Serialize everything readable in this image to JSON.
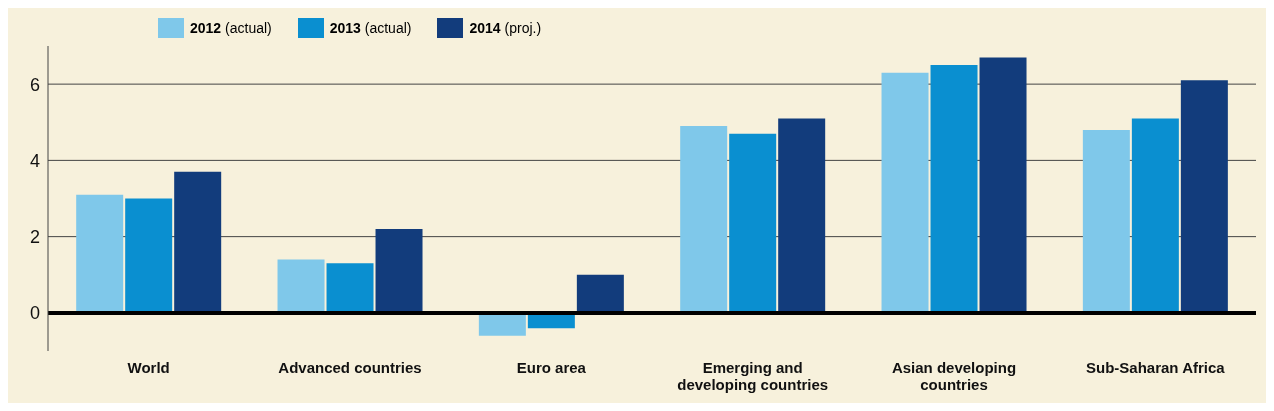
{
  "chart_data": {
    "type": "bar",
    "categories": [
      "World",
      "Advanced countries",
      "Euro area",
      "Emerging and developing countries",
      "Asian developing countries",
      "Sub-Saharan Africa"
    ],
    "series": [
      {
        "name": "2012 (actual)",
        "color": "#7fc8ea",
        "values": [
          3.1,
          1.4,
          -0.6,
          4.9,
          6.3,
          4.8
        ]
      },
      {
        "name": "2013 (actual)",
        "color": "#0a8fd0",
        "values": [
          3.0,
          1.3,
          -0.4,
          4.7,
          6.5,
          5.1
        ]
      },
      {
        "name": "2014 (proj.)",
        "color": "#123c7c",
        "values": [
          3.7,
          2.2,
          1.0,
          5.1,
          6.7,
          6.1
        ]
      }
    ],
    "ylim": [
      -1,
      7
    ],
    "yticks": [
      0,
      2,
      4,
      6
    ],
    "grid": "y",
    "legend": "top left"
  }
}
